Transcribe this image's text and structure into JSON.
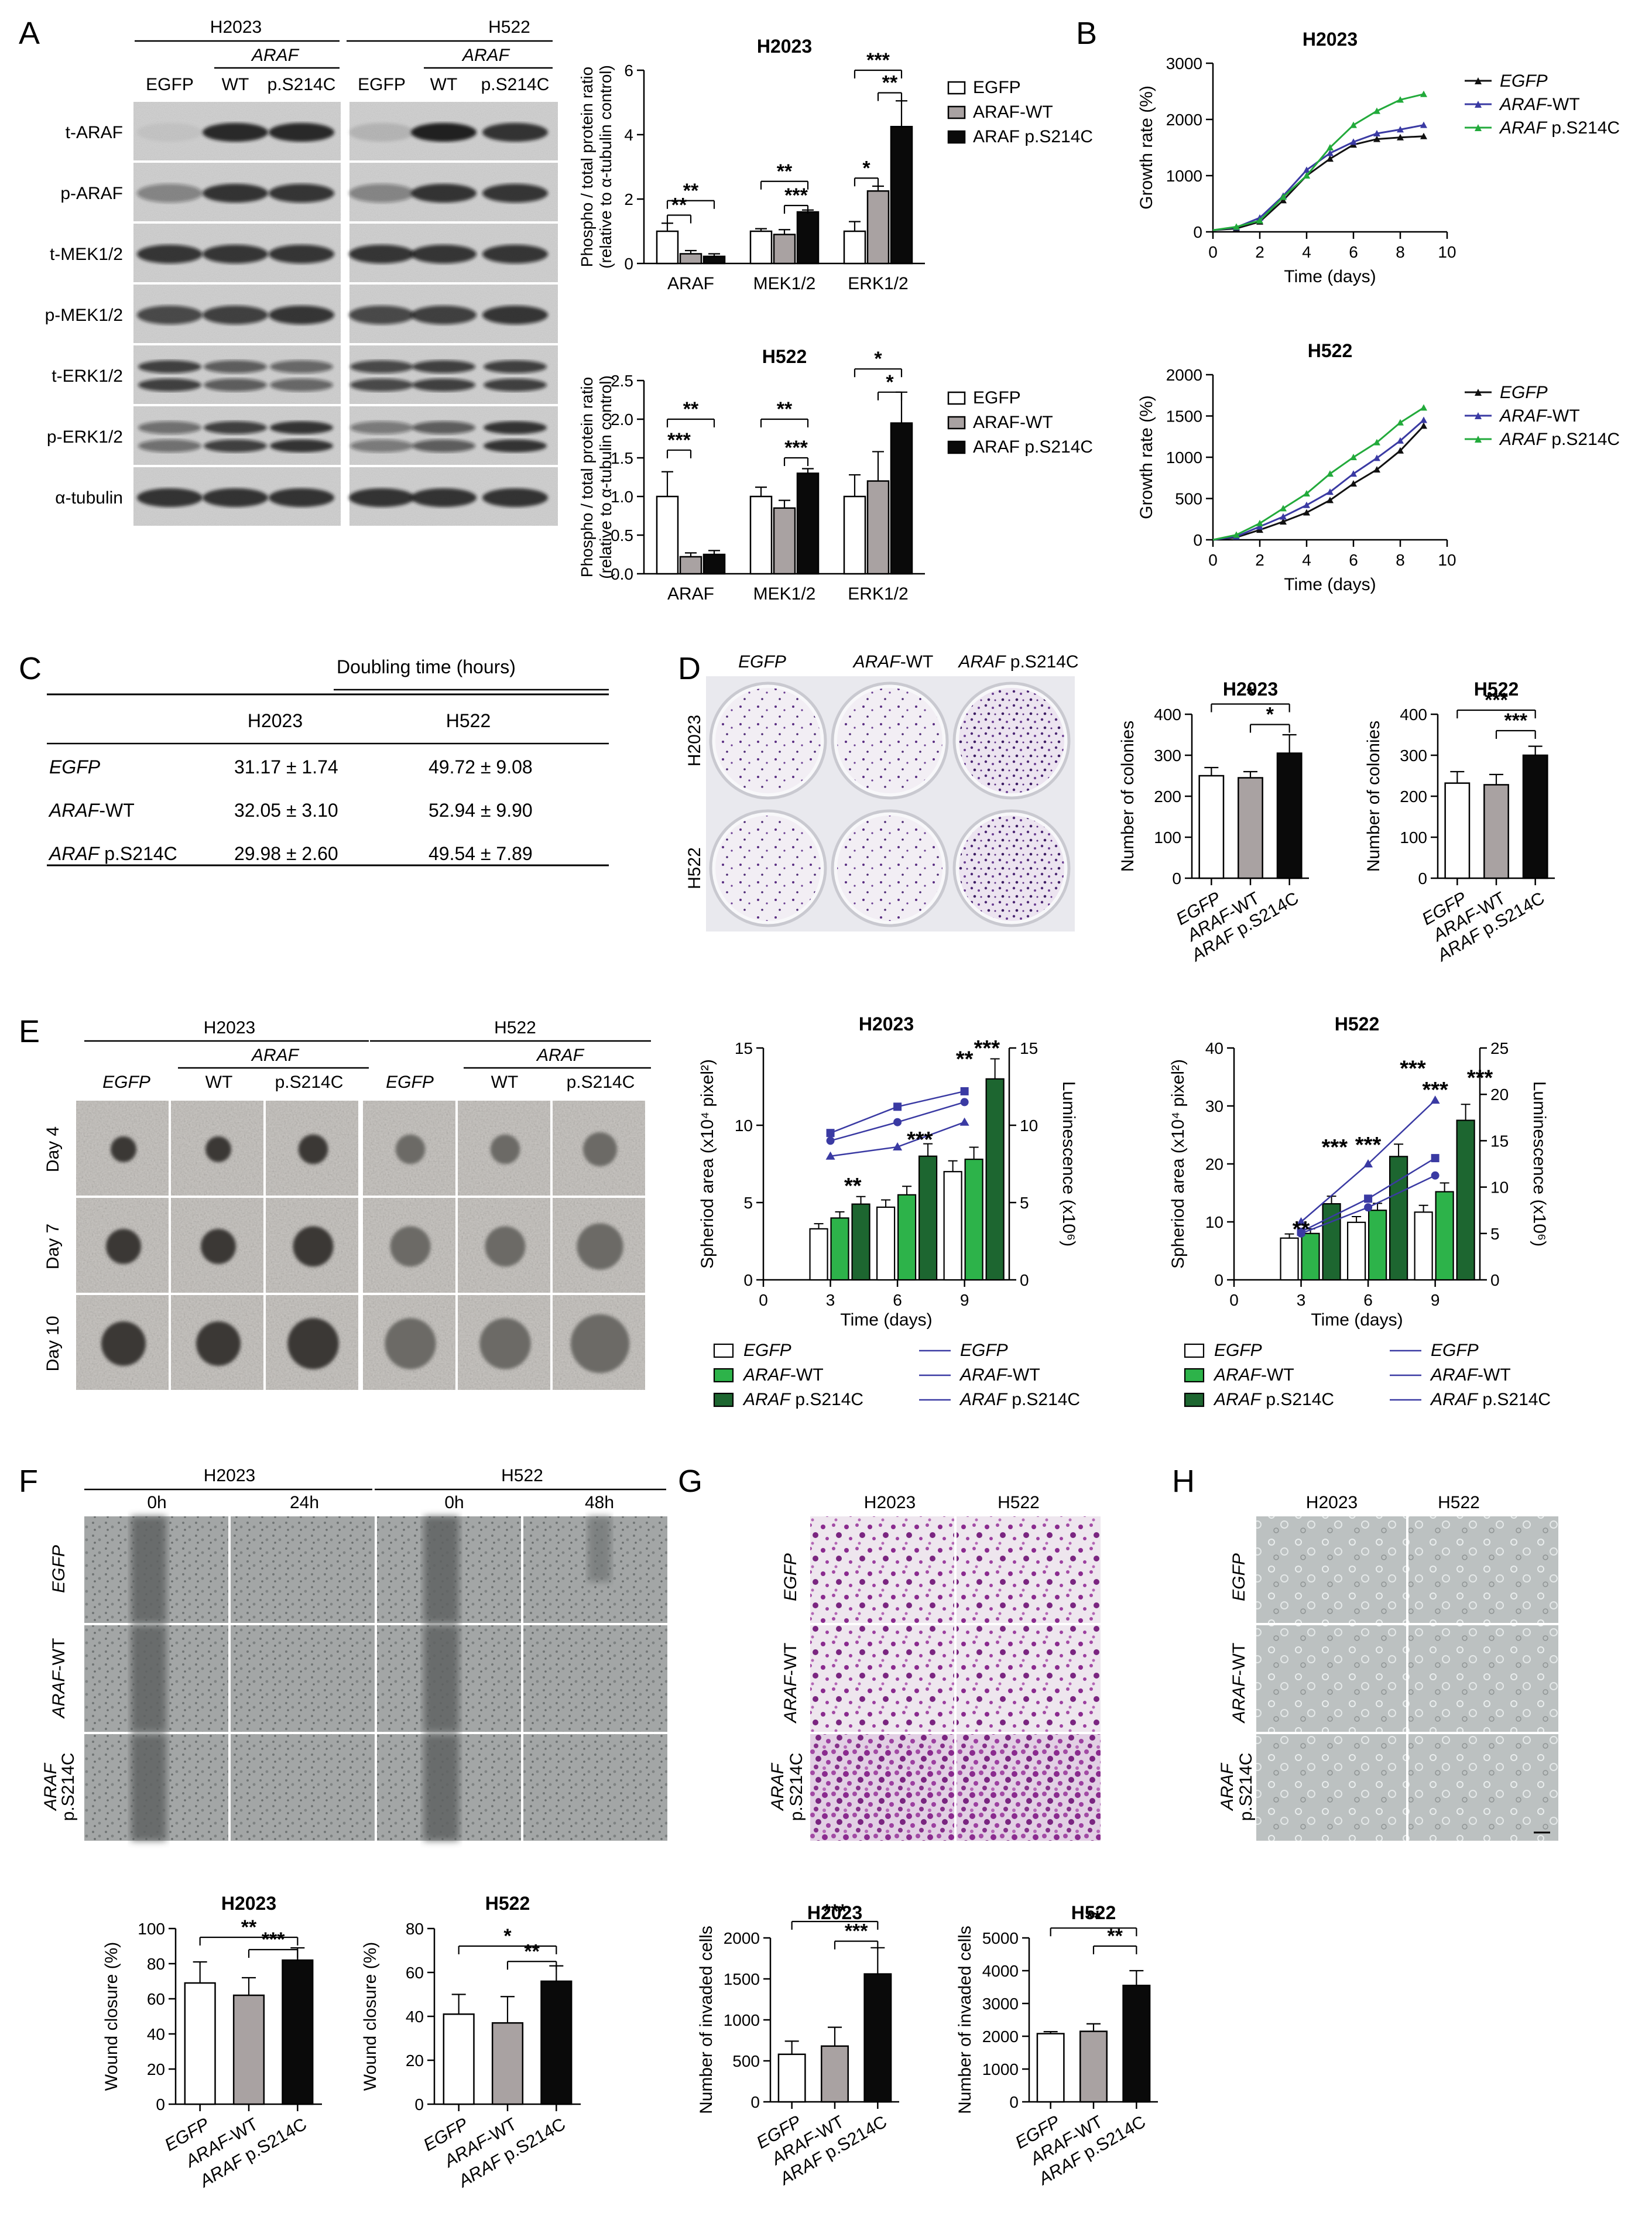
{
  "panel_letters": [
    "A",
    "B",
    "C",
    "D",
    "E",
    "F",
    "G",
    "H"
  ],
  "lines": {
    "H2023": "H2023",
    "H522": "H522"
  },
  "conditions": {
    "egfp": "EGFP",
    "araf": "ARAF",
    "wt": "WT",
    "ps": "p.S214C",
    "wt_suffix": "-WT",
    "ps_suffix": " p.S214C",
    "egfp_plain": "EGFP",
    "araf_wt_plain": "ARAF-WT",
    "araf_ps_plain": "ARAF p.S214C"
  },
  "stars": {
    "s1": "*",
    "s2": "**",
    "s3": "***"
  },
  "panel_A": {
    "blot_rows": [
      "t-ARAF",
      "p-ARAF",
      "t-MEK1/2",
      "p-MEK1/2",
      "t-ERK1/2",
      "p-ERK1/2",
      "α-tubulin"
    ],
    "chart_ylabel_1": "Phospho / total protein ratio",
    "chart_ylabel_2": "(relative to α-tubulin control)",
    "groups": [
      "ARAF",
      "MEK1/2",
      "ERK1/2"
    ],
    "legend": [
      "EGFP",
      "ARAF-WT",
      "ARAF p.S214C"
    ]
  },
  "panel_B": {
    "xlabel": "Time (days)",
    "ylabel": "Growth rate (%)"
  },
  "panel_C": {
    "header": "Doubling time (hours)",
    "col1": "H2023",
    "col2": "H522",
    "rows": [
      {
        "name_a": "EGFP",
        "name_b": "",
        "v1": "31.17 ± 1.74",
        "v2": "49.72 ± 9.08"
      },
      {
        "name_a": "ARAF",
        "name_b": "-WT",
        "v1": "32.05 ± 3.10",
        "v2": "52.94 ± 9.90"
      },
      {
        "name_a": "ARAF",
        "name_b": " p.S214C",
        "v1": "29.98 ± 2.60",
        "v2": "49.54 ± 7.89"
      }
    ]
  },
  "panel_D": {
    "ylabel": "Number of colonies"
  },
  "panel_E": {
    "rows": [
      "Day 4",
      "Day 7",
      "Day 10"
    ],
    "xlabel": "Time (days)",
    "ylabel_left": "Spheriod area (x10⁴ pixel²)",
    "ylabel_right": "Luminescence (x10⁶)"
  },
  "panel_F": {
    "times_h2023": [
      "0h",
      "24h"
    ],
    "times_h522": [
      "0h",
      "48h"
    ],
    "ylabel": "Wound closure (%)"
  },
  "panel_G": {
    "ylabel": "Number of invaded cells"
  },
  "chart_data": [
    {
      "id": "A-H2023",
      "type": "bar",
      "title": "H2023",
      "ylabel": "Phospho / total protein ratio (relative to α-tubulin control)",
      "ylim": [
        0,
        6
      ],
      "yticks": [
        0,
        2,
        4,
        6
      ],
      "categories": [
        "ARAF",
        "MEK1/2",
        "ERK1/2"
      ],
      "series": [
        {
          "name": "EGFP",
          "values": [
            1.0,
            1.0,
            1.0
          ],
          "err": [
            0.25,
            0.08,
            0.3
          ]
        },
        {
          "name": "ARAF-WT",
          "values": [
            0.3,
            0.9,
            2.25
          ],
          "err": [
            0.1,
            0.15,
            0.15
          ]
        },
        {
          "name": "ARAF p.S214C",
          "values": [
            0.22,
            1.6,
            4.25
          ],
          "err": [
            0.08,
            0.06,
            0.8
          ]
        }
      ]
    },
    {
      "id": "A-H522",
      "type": "bar",
      "title": "H522",
      "ylabel": "Phospho / total protein ratio (relative to α-tubulin control)",
      "ylim": [
        0,
        2.5
      ],
      "yticks": [
        0,
        0.5,
        1.0,
        1.5,
        2.0,
        2.5
      ],
      "categories": [
        "ARAF",
        "MEK1/2",
        "ERK1/2"
      ],
      "series": [
        {
          "name": "EGFP",
          "values": [
            1.0,
            1.0,
            1.0
          ],
          "err": [
            0.32,
            0.12,
            0.28
          ]
        },
        {
          "name": "ARAF-WT",
          "values": [
            0.22,
            0.85,
            1.2
          ],
          "err": [
            0.05,
            0.1,
            0.38
          ]
        },
        {
          "name": "ARAF p.S214C",
          "values": [
            0.25,
            1.3,
            1.95
          ],
          "err": [
            0.05,
            0.06,
            0.4
          ]
        }
      ]
    },
    {
      "id": "B-H2023",
      "type": "line",
      "title": "H2023",
      "xlabel": "Time (days)",
      "ylabel": "Growth rate (%)",
      "xlim": [
        0,
        10
      ],
      "ylim": [
        0,
        3000
      ],
      "xticks": [
        0,
        2,
        4,
        6,
        8,
        10
      ],
      "yticks": [
        0,
        1000,
        2000,
        3000
      ],
      "x": [
        0,
        1,
        2,
        3,
        4,
        5,
        6,
        7,
        8,
        9
      ],
      "series": [
        {
          "name": "EGFP",
          "values": [
            30,
            60,
            180,
            560,
            1000,
            1300,
            1550,
            1650,
            1680,
            1700
          ]
        },
        {
          "name": "ARAF-WT",
          "values": [
            30,
            80,
            250,
            640,
            1100,
            1400,
            1600,
            1750,
            1820,
            1900
          ]
        },
        {
          "name": "ARAF p.S214C",
          "values": [
            30,
            90,
            200,
            620,
            1000,
            1500,
            1900,
            2150,
            2350,
            2450
          ]
        }
      ]
    },
    {
      "id": "B-H522",
      "type": "line",
      "title": "H522",
      "xlabel": "Time (days)",
      "ylabel": "Growth rate (%)",
      "xlim": [
        0,
        10
      ],
      "ylim": [
        0,
        2000
      ],
      "xticks": [
        0,
        2,
        4,
        6,
        8,
        10
      ],
      "yticks": [
        0,
        500,
        1000,
        1500,
        2000
      ],
      "x": [
        0,
        1,
        2,
        3,
        4,
        5,
        6,
        7,
        8,
        9
      ],
      "series": [
        {
          "name": "EGFP",
          "values": [
            0,
            30,
            120,
            220,
            330,
            480,
            680,
            850,
            1080,
            1380
          ]
        },
        {
          "name": "ARAF-WT",
          "values": [
            0,
            40,
            160,
            280,
            420,
            580,
            800,
            990,
            1200,
            1450
          ]
        },
        {
          "name": "ARAF p.S214C",
          "values": [
            0,
            60,
            200,
            380,
            560,
            800,
            1000,
            1180,
            1420,
            1600
          ]
        }
      ]
    },
    {
      "id": "D-H2023",
      "type": "bar",
      "title": "H2023",
      "ylabel": "Number of colonies",
      "ylim": [
        0,
        400
      ],
      "yticks": [
        0,
        100,
        200,
        300,
        400
      ],
      "categories": [
        "EGFP",
        "ARAF-WT",
        "ARAF p.S214C"
      ],
      "values": [
        250,
        245,
        305
      ],
      "err": [
        20,
        15,
        45
      ]
    },
    {
      "id": "D-H522",
      "type": "bar",
      "title": "H522",
      "ylabel": "Number of colonies",
      "ylim": [
        0,
        400
      ],
      "yticks": [
        0,
        100,
        200,
        300,
        400
      ],
      "categories": [
        "EGFP",
        "ARAF-WT",
        "ARAF p.S214C"
      ],
      "values": [
        232,
        228,
        300
      ],
      "err": [
        28,
        25,
        22
      ]
    },
    {
      "id": "E-H2023",
      "type": "bar+line",
      "title": "H2023",
      "xlabel": "Time (days)",
      "ylabel_left": "Spheriod area (x10⁴ pixel²)",
      "ylabel_right": "Luminescence (x10⁶)",
      "xlim": [
        0,
        11
      ],
      "ylim_left": [
        0,
        15
      ],
      "ylim_right": [
        0,
        15
      ],
      "xticks": [
        0,
        3,
        6,
        9
      ],
      "yticks_left": [
        0,
        5,
        10,
        15
      ],
      "yticks_right": [
        0,
        5,
        10,
        15
      ],
      "x": [
        3,
        6,
        9
      ],
      "area": [
        {
          "name": "EGFP",
          "values": [
            9.0,
            10.2,
            11.5
          ]
        },
        {
          "name": "ARAF-WT",
          "values": [
            9.5,
            11.2,
            12.2
          ]
        },
        {
          "name": "ARAF p.S214C",
          "values": [
            8.0,
            8.6,
            10.2
          ]
        }
      ],
      "luminescence": [
        {
          "name": "EGFP",
          "values": [
            3.3,
            4.7,
            7.0
          ]
        },
        {
          "name": "ARAF-WT",
          "values": [
            4.0,
            5.5,
            7.8
          ]
        },
        {
          "name": "ARAF p.S214C",
          "values": [
            4.9,
            8.0,
            13.0
          ]
        }
      ]
    },
    {
      "id": "E-H522",
      "type": "bar+line",
      "title": "H522",
      "xlabel": "Time (days)",
      "ylabel_left": "Spheriod area (x10⁴ pixel²)",
      "ylabel_right": "Luminescence (x10⁶)",
      "xlim": [
        0,
        11
      ],
      "ylim_left": [
        0,
        40
      ],
      "ylim_right": [
        0,
        25
      ],
      "xticks": [
        0,
        3,
        6,
        9
      ],
      "yticks_left": [
        0,
        10,
        20,
        30,
        40
      ],
      "yticks_right": [
        0,
        5,
        10,
        15,
        20,
        25
      ],
      "x": [
        3,
        6,
        9
      ],
      "area": [
        {
          "name": "EGFP",
          "values": [
            8,
            12.5,
            18
          ]
        },
        {
          "name": "ARAF-WT",
          "values": [
            8.3,
            14,
            21
          ]
        },
        {
          "name": "ARAF p.S214C",
          "values": [
            10,
            20,
            31
          ]
        }
      ],
      "luminescence": [
        {
          "name": "EGFP",
          "values": [
            4.5,
            6.2,
            7.3
          ]
        },
        {
          "name": "ARAF-WT",
          "values": [
            5.0,
            7.5,
            9.5
          ]
        },
        {
          "name": "ARAF p.S214C",
          "values": [
            8.2,
            13.3,
            17.2
          ]
        }
      ]
    },
    {
      "id": "F-H2023",
      "type": "bar",
      "title": "H2023",
      "ylabel": "Wound closure (%)",
      "ylim": [
        0,
        100
      ],
      "yticks": [
        0,
        20,
        40,
        60,
        80,
        100
      ],
      "categories": [
        "EGFP",
        "ARAF-WT",
        "ARAF p.S214C"
      ],
      "values": [
        69,
        62,
        82
      ],
      "err": [
        12,
        10,
        7
      ]
    },
    {
      "id": "F-H522",
      "type": "bar",
      "title": "H522",
      "ylabel": "Wound closure (%)",
      "ylim": [
        0,
        80
      ],
      "yticks": [
        0,
        20,
        40,
        60,
        80
      ],
      "categories": [
        "EGFP",
        "ARAF-WT",
        "ARAF p.S214C"
      ],
      "values": [
        41,
        37,
        56
      ],
      "err": [
        9,
        12,
        7
      ]
    },
    {
      "id": "G-H2023",
      "type": "bar",
      "title": "H2023",
      "ylabel": "Number of invaded cells",
      "ylim": [
        0,
        2000
      ],
      "yticks": [
        0,
        500,
        1000,
        1500,
        2000
      ],
      "categories": [
        "EGFP",
        "ARAF-WT",
        "ARAF p.S214C"
      ],
      "values": [
        580,
        680,
        1560
      ],
      "err": [
        160,
        230,
        320
      ]
    },
    {
      "id": "G-H522",
      "type": "bar",
      "title": "H522",
      "ylabel": "Number of invaded cells",
      "ylim": [
        0,
        5000
      ],
      "yticks": [
        0,
        1000,
        2000,
        3000,
        4000,
        5000
      ],
      "categories": [
        "EGFP",
        "ARAF-WT",
        "ARAF p.S214C"
      ],
      "values": [
        2080,
        2150,
        3550
      ],
      "err": [
        60,
        230,
        450
      ]
    }
  ],
  "colors": {
    "egfp": "#ffffff",
    "wt_gray": "#a9a2a2",
    "ps_black": "#0a0a0a",
    "blue": "#3a3aa3",
    "green": "#22aa3b",
    "darkgreen": "#1d6630",
    "lightgreen": "#2db34a",
    "annot_blue": "#3a3aa3",
    "annot_green": "#0d8a36"
  }
}
